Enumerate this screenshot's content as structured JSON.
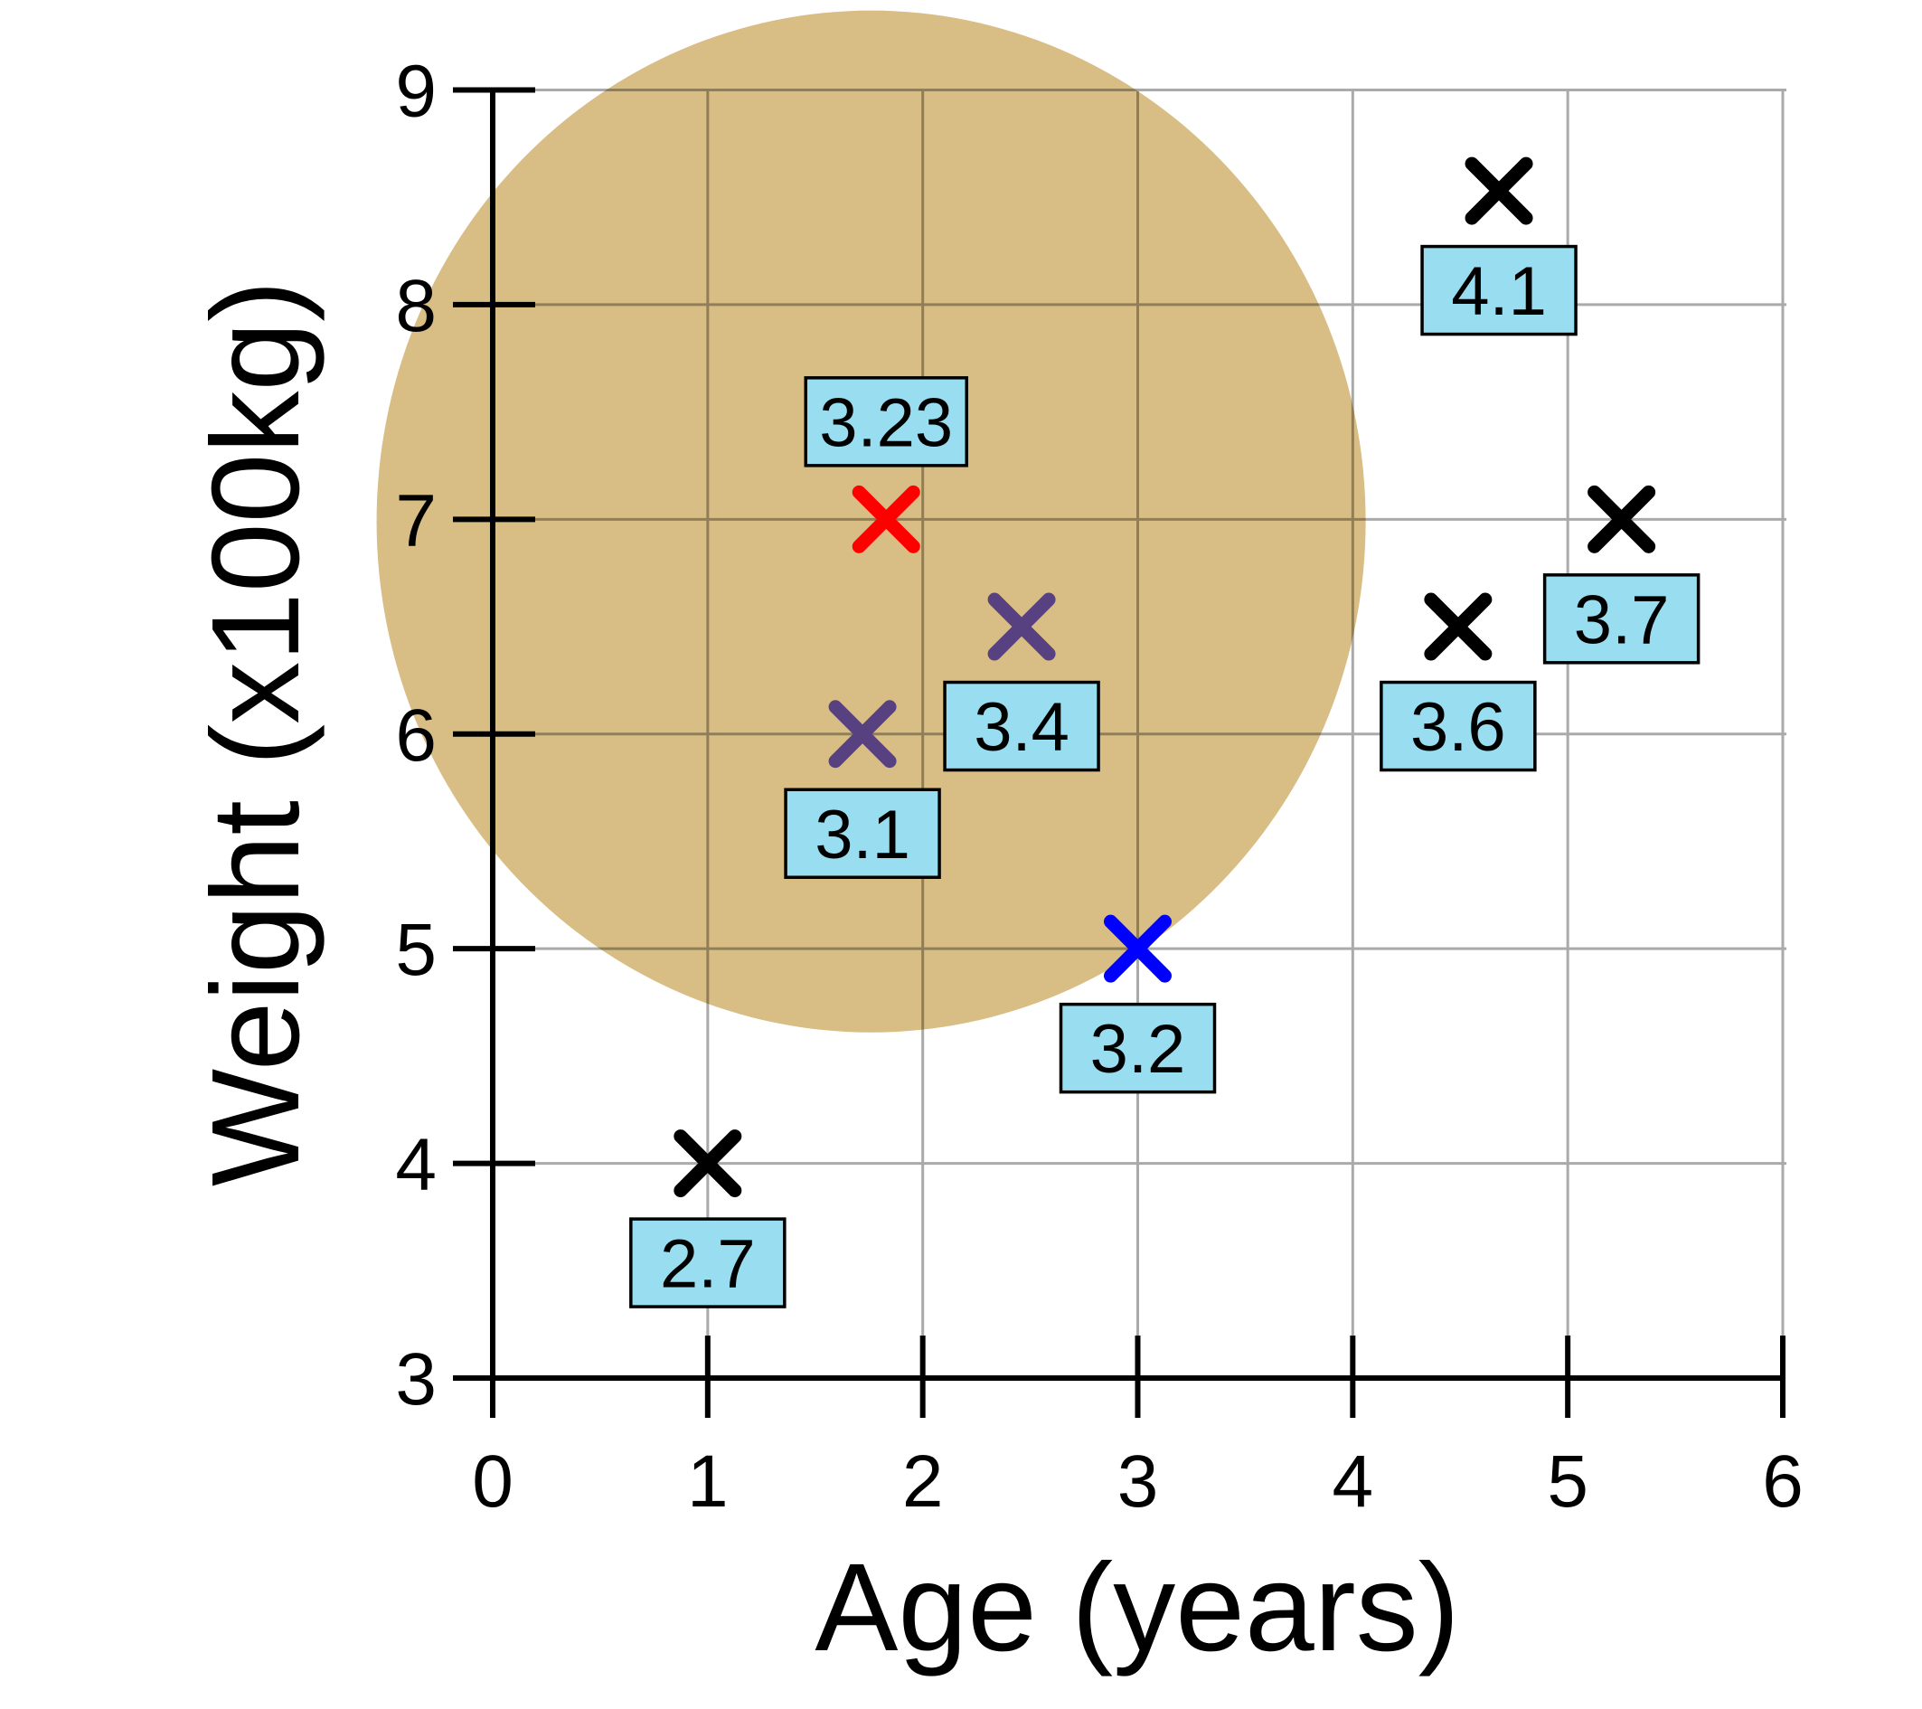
{
  "chart_data": {
    "type": "scatter",
    "title": "",
    "xlabel": "Age (years)",
    "ylabel": "Weight (x100kg)",
    "xlim": [
      0,
      6
    ],
    "ylim": [
      3,
      9
    ],
    "xticks": [
      "0",
      "1",
      "2",
      "3",
      "4",
      "5",
      "6"
    ],
    "yticks": [
      "3",
      "4",
      "5",
      "6",
      "7",
      "8",
      "9"
    ],
    "grid": true,
    "highlight_circle": {
      "cx": 1.76,
      "cy": 6.99,
      "radius_x": 2.3,
      "radius_y": 2.38,
      "color": "#d6b97d"
    },
    "label_box_color": "#99ddf0",
    "points": [
      {
        "x": 1.0,
        "y": 4.0,
        "label": "2.7",
        "color": "#000000",
        "label_pos": "below"
      },
      {
        "x": 1.72,
        "y": 6.0,
        "label": "3.1",
        "color": "#584180",
        "label_pos": "below"
      },
      {
        "x": 2.46,
        "y": 6.5,
        "label": "3.4",
        "color": "#584180",
        "label_pos": "below"
      },
      {
        "x": 1.83,
        "y": 7.0,
        "label": "3.23",
        "color": "#ff0000",
        "label_pos": "above"
      },
      {
        "x": 3.0,
        "y": 5.0,
        "label": "3.2",
        "color": "#0000ff",
        "label_pos": "below"
      },
      {
        "x": 4.49,
        "y": 6.5,
        "label": "3.6",
        "color": "#000000",
        "label_pos": "below"
      },
      {
        "x": 4.68,
        "y": 8.53,
        "label": "4.1",
        "color": "#000000",
        "label_pos": "below"
      },
      {
        "x": 5.25,
        "y": 7.0,
        "label": "3.7",
        "color": "#000000",
        "label_pos": "below"
      }
    ]
  }
}
